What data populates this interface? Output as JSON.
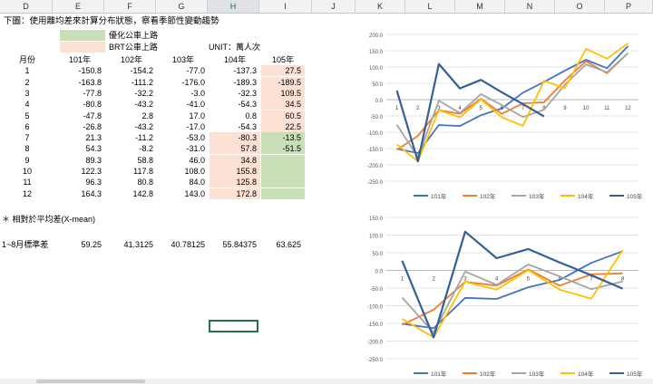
{
  "columns": [
    "D",
    "E",
    "F",
    "G",
    "H",
    "I",
    "J",
    "K",
    "L",
    "M",
    "N",
    "O",
    "P"
  ],
  "title": "下圖：使用離均差來計算分布狀態，察看季節性變動趨勢",
  "legend_optimized": "優化公車上路",
  "legend_brt": "BRT公車上路",
  "unit": "UNIT：萬人次",
  "table": {
    "header": [
      "月份",
      "101年",
      "102年",
      "103年",
      "104年",
      "105年"
    ],
    "rows": [
      [
        "1",
        "-150.8",
        "-154.2",
        "-77.0",
        "-137.3",
        "27.5"
      ],
      [
        "2",
        "-163.8",
        "-111.2",
        "-176.0",
        "-189.3",
        "-189.5"
      ],
      [
        "3",
        "-77.8",
        "-32.2",
        "-3.0",
        "-32.3",
        "109.5"
      ],
      [
        "4",
        "-80.8",
        "-43.2",
        "-41.0",
        "-54.3",
        "34.5"
      ],
      [
        "5",
        "-47.8",
        "2.8",
        "17.0",
        "0.8",
        "60.5"
      ],
      [
        "6",
        "-26.8",
        "-43.2",
        "-17.0",
        "-54.3",
        "22.5"
      ],
      [
        "7",
        "21.3",
        "-11.2",
        "-53.0",
        "-80.3",
        "-13.5"
      ],
      [
        "8",
        "54.3",
        "-8.2",
        "-31.0",
        "57.8",
        "-51.5"
      ],
      [
        "9",
        "89.3",
        "58.8",
        "46.0",
        "34.8",
        ""
      ],
      [
        "10",
        "122.3",
        "117.8",
        "108.0",
        "155.8",
        ""
      ],
      [
        "11",
        "96.3",
        "80.8",
        "84.0",
        "125.8",
        ""
      ],
      [
        "12",
        "164.3",
        "142.8",
        "143.0",
        "172.8",
        ""
      ]
    ]
  },
  "note": "＊ 相對於平均差(X-mean)",
  "std_row": {
    "label": "1~8月標準差",
    "values": [
      "59.25",
      "41.3125",
      "40.78125",
      "55.84375",
      "63.625"
    ]
  },
  "colors": {
    "s101": "#4472c4",
    "s102": "#ed7d31",
    "s103": "#a5a5a5",
    "s104": "#ffc000",
    "s105": "#365f99",
    "pink": "#fbe0d3",
    "green": "#c8dfb8"
  },
  "chart_data": [
    {
      "type": "line",
      "x": [
        "1",
        "2",
        "3",
        "4",
        "5",
        "6",
        "7",
        "8",
        "9",
        "10",
        "11",
        "12"
      ],
      "ylim": [
        -250,
        200
      ],
      "yticks": [
        "200.0",
        "150.0",
        "100.0",
        "50.0",
        "0.0",
        "-50.0",
        "-100.0",
        "-150.0",
        "-200.0",
        "-250.0"
      ],
      "series": [
        {
          "name": "101年",
          "values": [
            -150.8,
            -163.8,
            -77.8,
            -80.8,
            -47.8,
            -26.8,
            21.3,
            54.3,
            89.3,
            122.3,
            96.3,
            164.3
          ]
        },
        {
          "name": "102年",
          "values": [
            -154.2,
            -111.2,
            -32.2,
            -43.2,
            2.8,
            -43.2,
            -11.2,
            -8.2,
            58.8,
            117.8,
            80.8,
            142.8
          ]
        },
        {
          "name": "103年",
          "values": [
            -77.0,
            -176.0,
            -3.0,
            -41.0,
            17.0,
            -17.0,
            -53.0,
            -31.0,
            46.0,
            108.0,
            84.0,
            143.0
          ]
        },
        {
          "name": "104年",
          "values": [
            -137.3,
            -189.3,
            -32.3,
            -54.3,
            0.8,
            -54.3,
            -80.3,
            57.8,
            34.8,
            155.8,
            125.8,
            172.8
          ]
        },
        {
          "name": "105年",
          "values": [
            27.5,
            -189.5,
            109.5,
            34.5,
            60.5,
            22.5,
            -13.5,
            -51.5,
            null,
            null,
            null,
            null
          ]
        }
      ]
    },
    {
      "type": "line",
      "x": [
        "1",
        "2",
        "3",
        "4",
        "5",
        "6",
        "7",
        "8"
      ],
      "ylim": [
        -250,
        150
      ],
      "yticks": [
        "150.0",
        "100.0",
        "50.0",
        "0.0",
        "-50.0",
        "-100.0",
        "-150.0",
        "-200.0",
        "-250.0"
      ],
      "series": [
        {
          "name": "101年",
          "values": [
            -150.8,
            -163.8,
            -77.8,
            -80.8,
            -47.8,
            -26.8,
            21.3,
            54.3
          ]
        },
        {
          "name": "102年",
          "values": [
            -154.2,
            -111.2,
            -32.2,
            -43.2,
            2.8,
            -43.2,
            -11.2,
            -8.2
          ]
        },
        {
          "name": "103年",
          "values": [
            -77.0,
            -176.0,
            -3.0,
            -41.0,
            17.0,
            -17.0,
            -53.0,
            -31.0
          ]
        },
        {
          "name": "104年",
          "values": [
            -137.3,
            -189.3,
            -32.3,
            -54.3,
            0.8,
            -54.3,
            -80.3,
            57.8
          ]
        },
        {
          "name": "105年",
          "values": [
            27.5,
            -189.5,
            109.5,
            34.5,
            60.5,
            22.5,
            -13.5,
            -51.5
          ]
        }
      ]
    }
  ]
}
